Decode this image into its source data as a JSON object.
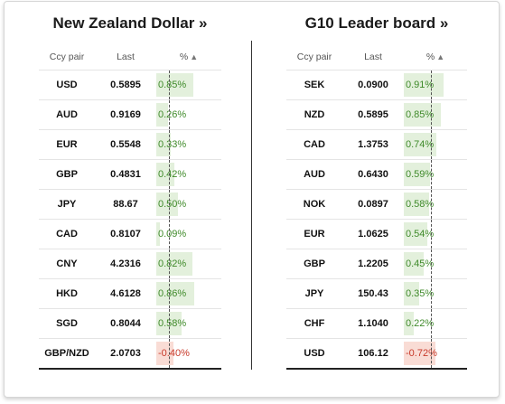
{
  "left": {
    "title": "New Zealand Dollar »",
    "headers": {
      "pair": "Ccy pair",
      "last": "Last",
      "pct": "%",
      "sort": "▲"
    },
    "rows": [
      {
        "pair": "USD",
        "last": "0.5895",
        "pct": "0.85%",
        "value": 0.85
      },
      {
        "pair": "AUD",
        "last": "0.9169",
        "pct": "0.26%",
        "value": 0.26
      },
      {
        "pair": "EUR",
        "last": "0.5548",
        "pct": "0.33%",
        "value": 0.33
      },
      {
        "pair": "GBP",
        "last": "0.4831",
        "pct": "0.42%",
        "value": 0.42
      },
      {
        "pair": "JPY",
        "last": "88.67",
        "pct": "0.50%",
        "value": 0.5
      },
      {
        "pair": "CAD",
        "last": "0.8107",
        "pct": "0.09%",
        "value": 0.09
      },
      {
        "pair": "CNY",
        "last": "4.2316",
        "pct": "0.82%",
        "value": 0.82
      },
      {
        "pair": "HKD",
        "last": "4.6128",
        "pct": "0.86%",
        "value": 0.86
      },
      {
        "pair": "SGD",
        "last": "0.8044",
        "pct": "0.58%",
        "value": 0.58
      },
      {
        "pair": "GBP/NZD",
        "last": "2.0703",
        "pct": "-0.40%",
        "value": -0.4
      }
    ]
  },
  "right": {
    "title": "G10 Leader board »",
    "headers": {
      "pair": "Ccy pair",
      "last": "Last",
      "pct": "%",
      "sort": "▲"
    },
    "rows": [
      {
        "pair": "SEK",
        "last": "0.0900",
        "pct": "0.91%",
        "value": 0.91
      },
      {
        "pair": "NZD",
        "last": "0.5895",
        "pct": "0.85%",
        "value": 0.85
      },
      {
        "pair": "CAD",
        "last": "1.3753",
        "pct": "0.74%",
        "value": 0.74
      },
      {
        "pair": "AUD",
        "last": "0.6430",
        "pct": "0.59%",
        "value": 0.59
      },
      {
        "pair": "NOK",
        "last": "0.0897",
        "pct": "0.58%",
        "value": 0.58
      },
      {
        "pair": "EUR",
        "last": "1.0625",
        "pct": "0.54%",
        "value": 0.54
      },
      {
        "pair": "GBP",
        "last": "1.2205",
        "pct": "0.45%",
        "value": 0.45
      },
      {
        "pair": "JPY",
        "last": "150.43",
        "pct": "0.35%",
        "value": 0.35
      },
      {
        "pair": "CHF",
        "last": "1.1040",
        "pct": "0.22%",
        "value": 0.22
      },
      {
        "pair": "USD",
        "last": "106.12",
        "pct": "-0.72%",
        "value": -0.72
      }
    ]
  },
  "colors": {
    "positive_bar": "#e3f0dc",
    "negative_bar": "#f9dcd5",
    "positive_text": "#3f8a2a",
    "negative_text": "#c83a2a"
  }
}
